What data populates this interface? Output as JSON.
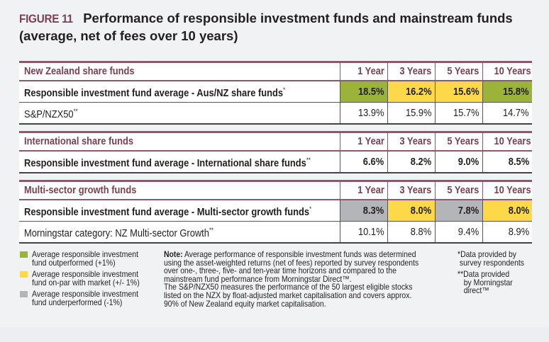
{
  "title": {
    "figure_label": "FIGURE 11",
    "line1": "Performance of responsible investment funds and mainstream funds",
    "line2": "(average, net of fees over 10 years)"
  },
  "colors": {
    "outperformed": "#9cb33a",
    "on_par": "#fdd94a",
    "underperformed": "#b4b5b8",
    "header_text": "#7a4152",
    "rule": "#8a5a68"
  },
  "chart_data": {
    "type": "table",
    "title": "Performance of responsible investment funds and mainstream funds (average, net of fees over 10 years)",
    "columns": [
      "1 Year",
      "3 Years",
      "5 Years",
      "10 Years"
    ],
    "groups": [
      {
        "name": "New Zealand share funds",
        "rows": [
          {
            "label": "Responsible investment fund average - Aus/NZ share funds",
            "mark": "*",
            "bold": true,
            "values": [
              "18.5%",
              "16.2%",
              "15.6%",
              "15.8%"
            ],
            "status": [
              "outperformed",
              "on_par",
              "on_par",
              "outperformed"
            ]
          },
          {
            "label": "S&P/NZX50",
            "mark": "**",
            "bold": false,
            "values": [
              "13.9%",
              "15.9%",
              "15.7%",
              "14.7%"
            ],
            "status": [
              "none",
              "none",
              "none",
              "none"
            ]
          }
        ]
      },
      {
        "name": "International share funds",
        "rows": [
          {
            "label": "Responsible investment fund average - International share funds",
            "mark": "**",
            "bold": true,
            "values": [
              "6.6%",
              "8.2%",
              "9.0%",
              "8.5%"
            ],
            "status": [
              "none",
              "none",
              "none",
              "none"
            ]
          }
        ]
      },
      {
        "name": "Multi-sector growth funds",
        "rows": [
          {
            "label": "Responsible investment fund average - Multi-sector growth funds",
            "mark": "*",
            "bold": true,
            "values": [
              "8.3%",
              "8.0%",
              "7.8%",
              "8.0%"
            ],
            "status": [
              "underperformed",
              "on_par",
              "underperformed",
              "on_par"
            ]
          },
          {
            "label": "Morningstar category: NZ Multi-sector Growth",
            "mark": "**",
            "bold": false,
            "values": [
              "10.1%",
              "8.8%",
              "9.4%",
              "8.9%"
            ],
            "status": [
              "none",
              "none",
              "none",
              "none"
            ]
          }
        ]
      }
    ]
  },
  "legend": [
    {
      "key": "outperformed",
      "line1": "Average responsible investment",
      "line2": "fund outperformed (+1%)"
    },
    {
      "key": "on_par",
      "line1": "Average responsible investment",
      "line2": "fund on-par with market (+/- 1%)"
    },
    {
      "key": "underperformed",
      "line1": "Average responsible investment",
      "line2": "fund underperformed (-1%)"
    }
  ],
  "note": {
    "label": "Note:",
    "lines": [
      "Average performance of responsible investment funds was determined",
      "using the asset-weighted returns (net of fees) reported by survey respondents",
      "over one-, three-, five- and ten-year time horizons and compared to the",
      "mainstream fund performance from Morningstar Direct™.",
      "The S&P/NZX50 measures the performance of the 50 largest eligible stocks",
      "listed on the NZX by float-adjusted market capitalisation and covers approx.",
      "90% of New Zealand equity market capitalisation."
    ]
  },
  "footnotes": [
    {
      "lines": [
        "*Data provided by",
        " survey respondents"
      ]
    },
    {
      "lines": [
        "**Data provided",
        "   by Morningstar",
        "   direct™"
      ]
    }
  ]
}
